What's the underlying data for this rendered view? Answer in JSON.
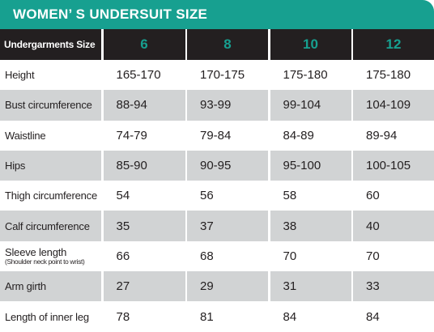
{
  "title": "WOMEN’ S UNDERSUIT SIZE",
  "table": {
    "header": [
      "Undergarments Size",
      "6",
      "8",
      "10",
      "12"
    ],
    "rows": [
      {
        "label": "Height",
        "cells": [
          "165-170",
          "170-175",
          "175-180",
          "175-180"
        ]
      },
      {
        "label": "Bust circumference",
        "cells": [
          "88-94",
          "93-99",
          "99-104",
          "104-109"
        ]
      },
      {
        "label": "Waistline",
        "cells": [
          "74-79",
          "79-84",
          "84-89",
          "89-94"
        ]
      },
      {
        "label": "Hips",
        "cells": [
          "85-90",
          "90-95",
          "95-100",
          "100-105"
        ]
      },
      {
        "label": "Thigh circumference",
        "cells": [
          "54",
          "56",
          "58",
          "60"
        ]
      },
      {
        "label": "Calf circumference",
        "cells": [
          "35",
          "37",
          "38",
          "40"
        ]
      },
      {
        "label": "Sleeve length",
        "note": "(Shoulder neck point to wrist)",
        "cells": [
          "66",
          "68",
          "70",
          "70"
        ]
      },
      {
        "label": "Arm girth",
        "cells": [
          "27",
          "29",
          "31",
          "33"
        ]
      },
      {
        "label": "Length of inner leg",
        "cells": [
          "78",
          "81",
          "84",
          "84"
        ]
      }
    ]
  }
}
